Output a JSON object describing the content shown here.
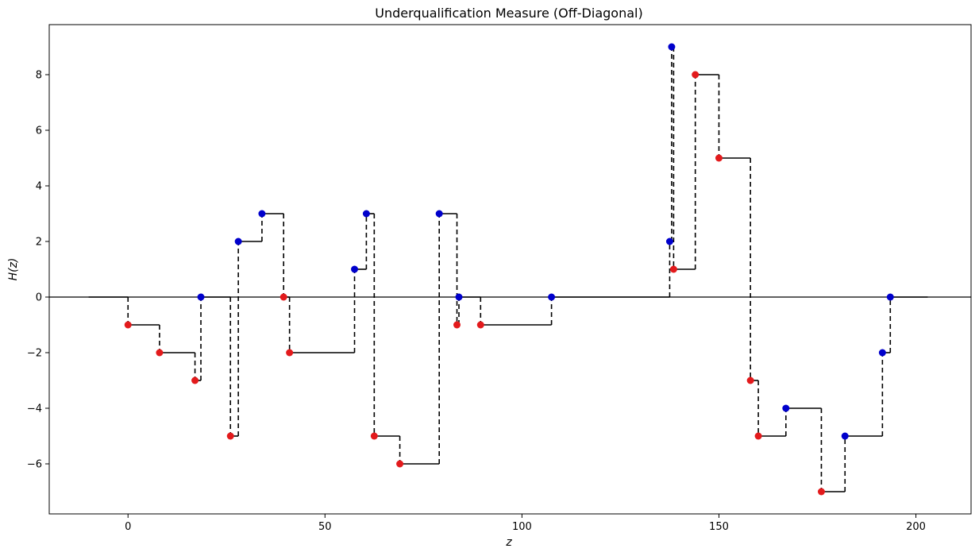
{
  "chart_data": {
    "type": "line",
    "title": "Underqualification Measure (Off-Diagonal)",
    "xlabel": "z",
    "ylabel": "H(z)",
    "xlim": [
      -20,
      214
    ],
    "ylim": [
      -7.8,
      9.8
    ],
    "xticks": [
      0,
      50,
      100,
      150,
      200
    ],
    "yticks": [
      -6,
      -4,
      -2,
      0,
      2,
      4,
      6,
      8
    ],
    "zero_line": true,
    "grid": false,
    "colors": {
      "step": "#000000",
      "red_points": "#e31a1c",
      "blue_points": "#0000cc",
      "zero_line": "#000000"
    },
    "step_start": [
      -10,
      0
    ],
    "step_end": [
      203,
      0
    ],
    "step_points": [
      {
        "x": 0,
        "y": -1,
        "color": "red"
      },
      {
        "x": 8,
        "y": -2,
        "color": "red"
      },
      {
        "x": 17,
        "y": -3,
        "color": "red"
      },
      {
        "x": 18.5,
        "y": 0,
        "color": "blue"
      },
      {
        "x": 26,
        "y": -5,
        "color": "red"
      },
      {
        "x": 28,
        "y": 2,
        "color": "blue"
      },
      {
        "x": 34,
        "y": 3,
        "color": "blue"
      },
      {
        "x": 39.5,
        "y": 0,
        "color": "red"
      },
      {
        "x": 41,
        "y": -2,
        "color": "red"
      },
      {
        "x": 57.5,
        "y": 1,
        "color": "blue"
      },
      {
        "x": 60.5,
        "y": 3,
        "color": "blue"
      },
      {
        "x": 62.5,
        "y": -5,
        "color": "red"
      },
      {
        "x": 69,
        "y": -6,
        "color": "red"
      },
      {
        "x": 79,
        "y": 3,
        "color": "blue"
      },
      {
        "x": 83.5,
        "y": -1,
        "color": "red"
      },
      {
        "x": 84,
        "y": 0,
        "color": "blue"
      },
      {
        "x": 89.5,
        "y": -1,
        "color": "red"
      },
      {
        "x": 107.5,
        "y": 0,
        "color": "blue"
      },
      {
        "x": 137.5,
        "y": 2,
        "color": "blue"
      },
      {
        "x": 138,
        "y": 9,
        "color": "blue"
      },
      {
        "x": 138.5,
        "y": 1,
        "color": "red"
      },
      {
        "x": 144,
        "y": 8,
        "color": "red"
      },
      {
        "x": 150,
        "y": 5,
        "color": "red"
      },
      {
        "x": 158,
        "y": -3,
        "color": "red"
      },
      {
        "x": 160,
        "y": -5,
        "color": "red"
      },
      {
        "x": 167,
        "y": -4,
        "color": "blue"
      },
      {
        "x": 176,
        "y": -7,
        "color": "red"
      },
      {
        "x": 182,
        "y": -5,
        "color": "blue"
      },
      {
        "x": 191.5,
        "y": -2,
        "color": "blue"
      },
      {
        "x": 193.5,
        "y": 0,
        "color": "blue"
      }
    ]
  }
}
